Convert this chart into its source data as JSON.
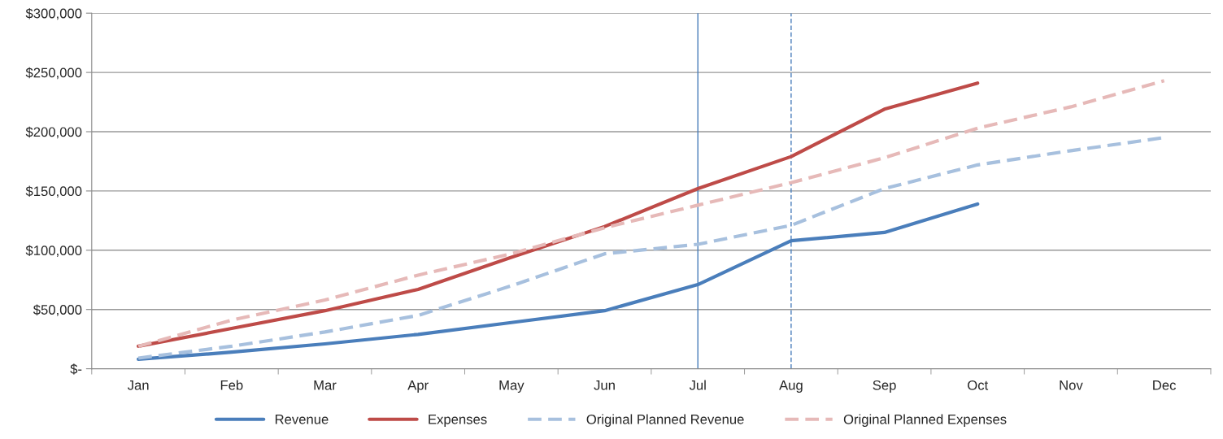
{
  "chart_data": {
    "type": "line",
    "categories": [
      "Jan",
      "Feb",
      "Mar",
      "Apr",
      "May",
      "Jun",
      "Jul",
      "Aug",
      "Sep",
      "Oct",
      "Nov",
      "Dec"
    ],
    "series": [
      {
        "name": "Revenue",
        "color": "#4a7ebb",
        "line_style": "solid",
        "values": [
          8000,
          14000,
          21000,
          29000,
          39000,
          49000,
          71000,
          108000,
          115000,
          139000,
          null,
          null
        ]
      },
      {
        "name": "Expenses",
        "color": "#be4b48",
        "line_style": "solid",
        "values": [
          19000,
          34000,
          49000,
          67000,
          94000,
          120000,
          152000,
          179000,
          219000,
          241000,
          null,
          null
        ]
      },
      {
        "name": "Original Planned Revenue",
        "color": "#a7c0de",
        "line_style": "dashed",
        "values": [
          9000,
          19000,
          31000,
          45000,
          70000,
          97000,
          105000,
          121000,
          152000,
          172000,
          184000,
          195000
        ]
      },
      {
        "name": "Original Planned Expenses",
        "color": "#e6b9b8",
        "line_style": "dashed",
        "values": [
          19000,
          41000,
          58000,
          79000,
          97000,
          119000,
          138000,
          157000,
          178000,
          203000,
          221000,
          243000
        ]
      }
    ],
    "ylim": [
      0,
      300000
    ],
    "yticks": [
      {
        "value": 0,
        "label": "$-"
      },
      {
        "value": 50000,
        "label": "$50,000"
      },
      {
        "value": 100000,
        "label": "$100,000"
      },
      {
        "value": 150000,
        "label": "$150,000"
      },
      {
        "value": 200000,
        "label": "$200,000"
      },
      {
        "value": 250000,
        "label": "$250,000"
      },
      {
        "value": 300000,
        "label": "$300,000"
      }
    ],
    "ref_lines": [
      {
        "axis": "x",
        "value": "Jul",
        "color": "#4a7ebb",
        "line_style": "solid"
      },
      {
        "axis": "x",
        "value": "Aug",
        "color": "#4a7ebb",
        "line_style": "dashed"
      }
    ],
    "grid": "y",
    "legend": "bottom",
    "marker": "none"
  }
}
